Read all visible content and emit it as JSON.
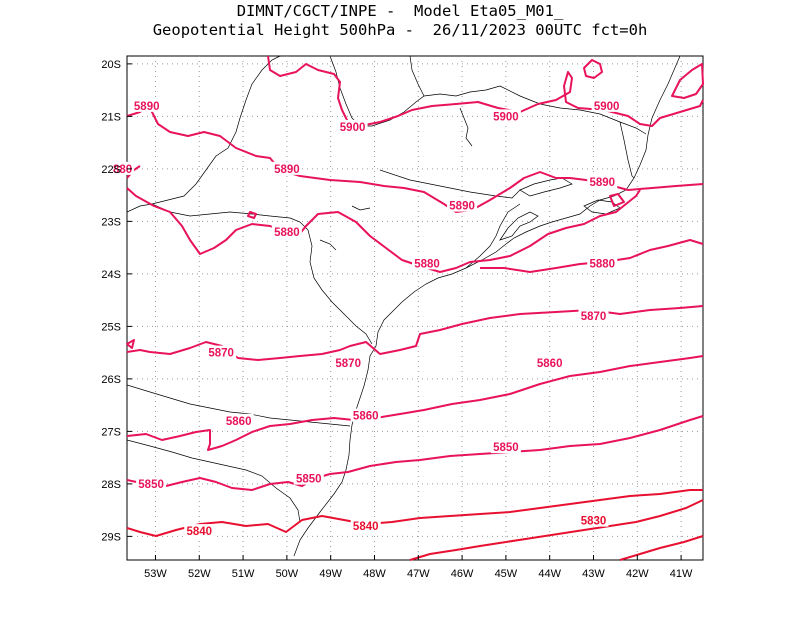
{
  "title": {
    "line1": "DIMNT/CGCT/INPE -  Model Eta05_M01_",
    "line2": "Geopotential Height 500hPa -  26/11/2023 00UTC fct=0h"
  },
  "colors": {
    "contour": "#e8135a",
    "contour_south": "#e81030",
    "coast": "#000000",
    "grid": "#999999"
  },
  "axes": {
    "lat_labels": [
      "20S",
      "21S",
      "22S",
      "23S",
      "24S",
      "25S",
      "26S",
      "27S",
      "28S",
      "29S"
    ],
    "lon_labels": [
      "53W",
      "52W",
      "51W",
      "50W",
      "49W",
      "48W",
      "47W",
      "46W",
      "45W",
      "44W",
      "43W",
      "42W",
      "41W"
    ]
  },
  "contour_labels": [
    {
      "text": "5890",
      "lon": -53.2,
      "lat": -20.8
    },
    {
      "text": "5900",
      "lon": -48.5,
      "lat": -21.2
    },
    {
      "text": "5900",
      "lon": -45.0,
      "lat": -21.0
    },
    {
      "text": "5900",
      "lon": -42.7,
      "lat": -20.8
    },
    {
      "text": "880",
      "lon": -53.75,
      "lat": -22.0
    },
    {
      "text": "5890",
      "lon": -50.0,
      "lat": -22.0
    },
    {
      "text": "5890",
      "lon": -46.0,
      "lat": -22.7
    },
    {
      "text": "5890",
      "lon": -42.8,
      "lat": -22.25
    },
    {
      "text": "5880",
      "lon": -50.0,
      "lat": -23.2
    },
    {
      "text": "5880",
      "lon": -46.8,
      "lat": -23.8
    },
    {
      "text": "5880",
      "lon": -42.8,
      "lat": -23.8
    },
    {
      "text": "5870",
      "lon": -51.5,
      "lat": -25.5
    },
    {
      "text": "5870",
      "lon": -48.6,
      "lat": -25.7
    },
    {
      "text": "5870",
      "lon": -43.0,
      "lat": -24.8
    },
    {
      "text": "5860",
      "lon": -44.0,
      "lat": -25.7
    },
    {
      "text": "5860",
      "lon": -51.1,
      "lat": -26.8
    },
    {
      "text": "5860",
      "lon": -48.2,
      "lat": -26.7
    },
    {
      "text": "5850",
      "lon": -45.0,
      "lat": -27.3
    },
    {
      "text": "5850",
      "lon": -53.1,
      "lat": -28.0
    },
    {
      "text": "5850",
      "lon": -49.5,
      "lat": -27.9
    },
    {
      "text": "5840",
      "lon": -52.0,
      "lat": -28.9
    },
    {
      "text": "5840",
      "lon": -48.2,
      "lat": -28.8
    },
    {
      "text": "5830",
      "lon": -43.0,
      "lat": -28.7
    }
  ]
}
